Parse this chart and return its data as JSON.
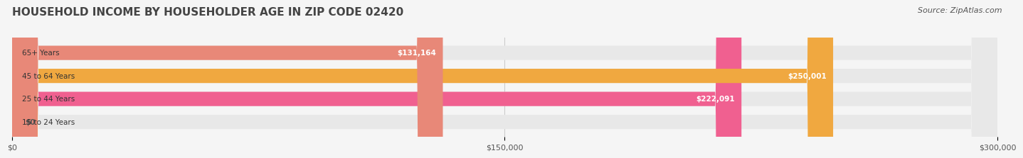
{
  "title": "HOUSEHOLD INCOME BY HOUSEHOLDER AGE IN ZIP CODE 02420",
  "source": "Source: ZipAtlas.com",
  "categories": [
    "15 to 24 Years",
    "25 to 44 Years",
    "45 to 64 Years",
    "65+ Years"
  ],
  "values": [
    0,
    222091,
    250001,
    131164
  ],
  "bar_colors": [
    "#a8a8d8",
    "#f06090",
    "#f0a840",
    "#e88878"
  ],
  "bar_labels": [
    "$0",
    "$222,091",
    "$250,001",
    "$131,164"
  ],
  "x_max": 300000,
  "x_ticks": [
    0,
    150000,
    300000
  ],
  "x_tick_labels": [
    "$0",
    "$150,000",
    "$300,000"
  ],
  "background_color": "#f5f5f5",
  "bar_bg_color": "#e8e8e8",
  "title_fontsize": 11,
  "source_fontsize": 8
}
